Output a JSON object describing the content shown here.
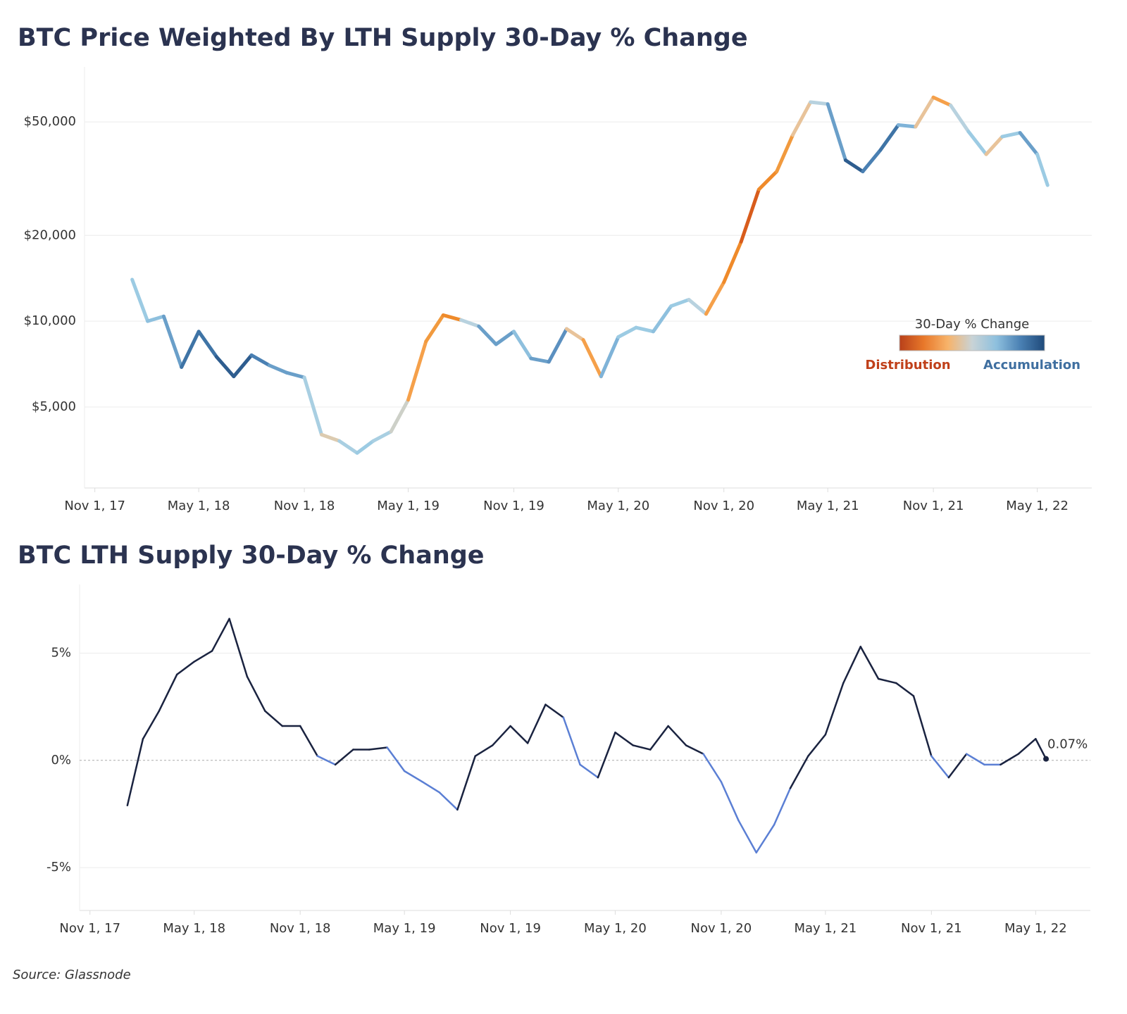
{
  "chart_data": [
    {
      "type": "line",
      "title": "BTC Price Weighted By LTH Supply 30-Day % Change",
      "yscale": "log",
      "grid": true,
      "xlim": [
        "2017-10-14",
        "2022-08-04"
      ],
      "ylim": [
        2600,
        78000
      ],
      "yticks": [
        {
          "value": 5000,
          "label": "$5,000"
        },
        {
          "value": 10000,
          "label": "$10,000"
        },
        {
          "value": 20000,
          "label": "$20,000"
        },
        {
          "value": 50000,
          "label": "$50,000"
        }
      ],
      "xticks": [
        {
          "value": "2017-11-01",
          "label": "Nov 1, 17"
        },
        {
          "value": "2018-05-01",
          "label": "May 1, 18"
        },
        {
          "value": "2018-11-01",
          "label": "Nov 1, 18"
        },
        {
          "value": "2019-05-01",
          "label": "May 1, 19"
        },
        {
          "value": "2019-11-01",
          "label": "Nov 1, 19"
        },
        {
          "value": "2020-05-01",
          "label": "May 1, 20"
        },
        {
          "value": "2020-11-01",
          "label": "Nov 1, 20"
        },
        {
          "value": "2021-05-01",
          "label": "May 1, 21"
        },
        {
          "value": "2021-11-01",
          "label": "Nov 1, 21"
        },
        {
          "value": "2022-05-01",
          "label": "May 1, 22"
        }
      ],
      "x": [
        "2018-01-05",
        "2018-02-01",
        "2018-03-01",
        "2018-04-01",
        "2018-05-01",
        "2018-06-01",
        "2018-07-01",
        "2018-08-01",
        "2018-09-01",
        "2018-10-01",
        "2018-11-01",
        "2018-12-01",
        "2019-01-01",
        "2019-02-01",
        "2019-03-01",
        "2019-04-01",
        "2019-05-01",
        "2019-06-01",
        "2019-07-01",
        "2019-08-01",
        "2019-09-01",
        "2019-10-01",
        "2019-11-01",
        "2019-12-01",
        "2020-01-01",
        "2020-02-01",
        "2020-03-01",
        "2020-04-01",
        "2020-05-01",
        "2020-06-01",
        "2020-07-01",
        "2020-08-01",
        "2020-09-01",
        "2020-10-01",
        "2020-11-01",
        "2020-12-01",
        "2021-01-01",
        "2021-02-01",
        "2021-03-01",
        "2021-04-01",
        "2021-05-01",
        "2021-06-01",
        "2021-07-01",
        "2021-08-01",
        "2021-09-01",
        "2021-10-01",
        "2021-11-01",
        "2021-12-01",
        "2022-01-01",
        "2022-02-01",
        "2022-03-01",
        "2022-04-01",
        "2022-05-01",
        "2022-05-19"
      ],
      "series": [
        {
          "values": [
            14000,
            10000,
            10400,
            6900,
            9200,
            7500,
            6400,
            7600,
            7000,
            6600,
            6350,
            4000,
            3800,
            3450,
            3800,
            4100,
            5300,
            8500,
            10500,
            10100,
            9600,
            8300,
            9200,
            7400,
            7200,
            9400,
            8600,
            6400,
            8800,
            9500,
            9200,
            11300,
            11900,
            10600,
            13700,
            19000,
            29000,
            33500,
            45000,
            58700,
            57800,
            36700,
            33500,
            39900,
            48800,
            48100,
            61000,
            57200,
            46300,
            38500,
            44400,
            45800,
            38500,
            30000
          ],
          "colors": [
            "#f5a04a",
            "#9ccbe3",
            "#8ec0de",
            "#6a9fc9",
            "#3f74a6",
            "#3f74a6",
            "#2e5d8f",
            "#2e5d8f",
            "#4a80b3",
            "#6a9fc9",
            "#6a9fc9",
            "#a9cfe2",
            "#dccbb0",
            "#a9cfe2",
            "#9ccbe3",
            "#a9cfe2",
            "#cdd0c8",
            "#f5a04a",
            "#f19a3e",
            "#ef8a2a",
            "#b8d2df",
            "#6a9fc9",
            "#6a9fc9",
            "#8ec0de",
            "#6a9fc9",
            "#5b90c0",
            "#e8c39a",
            "#f5a04a",
            "#7fb3d8",
            "#9ccbe3",
            "#9ccbe3",
            "#8ec0de",
            "#9ccbe3",
            "#b8d2df",
            "#f5a04a",
            "#ef8a2a",
            "#d85c1c",
            "#ef8a2a",
            "#f19a3e",
            "#e8c39a",
            "#b8d2df",
            "#6a9fc9",
            "#2e5d8f",
            "#4a80b3",
            "#3f74a6",
            "#7fb3d8",
            "#e8c39a",
            "#f5a04a",
            "#b8d2df",
            "#9ccbe3",
            "#e8c39a",
            "#9ccbe3",
            "#6a9fc9",
            "#9ccbe3"
          ]
        }
      ],
      "legend": {
        "title": "30-Day % Change",
        "low_label": "Distribution",
        "high_label": "Accumulation",
        "low_color": "#c0401a",
        "high_color": "#3f6fa0",
        "colors": [
          "#b8401a",
          "#e8782a",
          "#f7b36a",
          "#c9d3d6",
          "#8ec0de",
          "#4a80b3",
          "#1f4a7a"
        ]
      }
    },
    {
      "type": "line",
      "title": "BTC LTH Supply 30-Day % Change",
      "grid": true,
      "xlim": [
        "2017-10-14",
        "2022-08-04"
      ],
      "ylim": [
        -7,
        8.2
      ],
      "yticks": [
        {
          "value": -5,
          "label": "-5%"
        },
        {
          "value": 0,
          "label": "0%"
        },
        {
          "value": 5,
          "label": "5%"
        }
      ],
      "xticks": [
        {
          "value": "2017-11-01",
          "label": "Nov 1, 17"
        },
        {
          "value": "2018-05-01",
          "label": "May 1, 18"
        },
        {
          "value": "2018-11-01",
          "label": "Nov 1, 18"
        },
        {
          "value": "2019-05-01",
          "label": "May 1, 19"
        },
        {
          "value": "2019-11-01",
          "label": "Nov 1, 19"
        },
        {
          "value": "2020-05-01",
          "label": "May 1, 20"
        },
        {
          "value": "2020-11-01",
          "label": "Nov 1, 20"
        },
        {
          "value": "2021-05-01",
          "label": "May 1, 21"
        },
        {
          "value": "2021-11-01",
          "label": "Nov 1, 21"
        },
        {
          "value": "2022-05-01",
          "label": "May 1, 22"
        }
      ],
      "x": [
        "2018-01-05",
        "2018-02-01",
        "2018-03-01",
        "2018-04-01",
        "2018-05-01",
        "2018-06-01",
        "2018-07-01",
        "2018-08-01",
        "2018-09-01",
        "2018-10-01",
        "2018-11-01",
        "2018-12-01",
        "2019-01-01",
        "2019-02-01",
        "2019-03-01",
        "2019-04-01",
        "2019-05-01",
        "2019-06-01",
        "2019-07-01",
        "2019-08-01",
        "2019-09-01",
        "2019-10-01",
        "2019-11-01",
        "2019-12-01",
        "2020-01-01",
        "2020-02-01",
        "2020-03-01",
        "2020-04-01",
        "2020-05-01",
        "2020-06-01",
        "2020-07-01",
        "2020-08-01",
        "2020-09-01",
        "2020-10-01",
        "2020-11-01",
        "2020-12-01",
        "2021-01-01",
        "2021-02-01",
        "2021-03-01",
        "2021-04-01",
        "2021-05-01",
        "2021-06-01",
        "2021-07-01",
        "2021-08-01",
        "2021-09-01",
        "2021-10-01",
        "2021-11-01",
        "2021-12-01",
        "2022-01-01",
        "2022-02-01",
        "2022-03-01",
        "2022-04-01",
        "2022-05-01",
        "2022-05-19"
      ],
      "series": [
        {
          "values": [
            -2.1,
            1.0,
            2.3,
            4.0,
            4.6,
            5.1,
            6.6,
            3.9,
            2.3,
            1.6,
            1.6,
            0.2,
            -0.2,
            0.5,
            0.5,
            0.6,
            -0.5,
            -1.0,
            -1.5,
            -2.3,
            0.2,
            0.7,
            1.6,
            0.8,
            2.6,
            2.0,
            -0.2,
            -0.8,
            1.3,
            0.7,
            0.5,
            1.6,
            0.7,
            0.3,
            -1.0,
            -2.8,
            -4.3,
            -3.0,
            -1.3,
            0.2,
            1.2,
            3.6,
            5.3,
            3.8,
            3.6,
            3.0,
            0.2,
            -0.8,
            0.3,
            -0.2,
            -0.2,
            0.3,
            1.0,
            0.07
          ],
          "value_labels": [
            null,
            null,
            null,
            null,
            null,
            null,
            null,
            null,
            null,
            null,
            null,
            null,
            null,
            null,
            null,
            null,
            null,
            null,
            null,
            null,
            null,
            null,
            null,
            null,
            null,
            null,
            null,
            null,
            null,
            null,
            null,
            null,
            null,
            null,
            null,
            null,
            null,
            null,
            null,
            null,
            null,
            null,
            null,
            null,
            null,
            null,
            null,
            null,
            null,
            null,
            null,
            null,
            null,
            "0.07%"
          ],
          "color_above": "#1a2340",
          "color_below": "#5b7fd4"
        }
      ]
    }
  ],
  "source": "Source: Glassnode"
}
